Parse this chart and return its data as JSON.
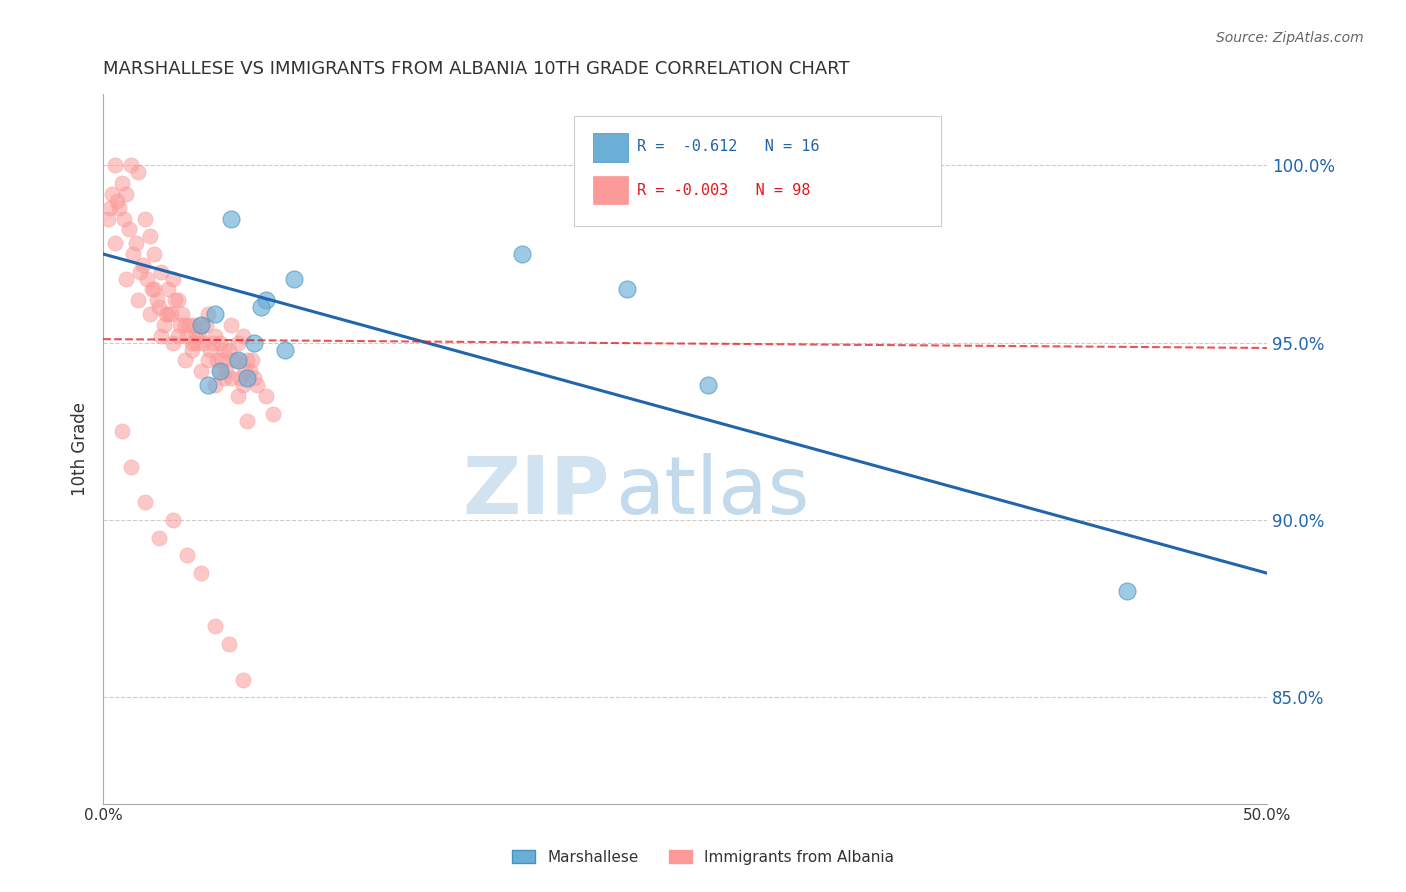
{
  "title": "MARSHALLESE VS IMMIGRANTS FROM ALBANIA 10TH GRADE CORRELATION CHART",
  "source": "Source: ZipAtlas.com",
  "ylabel": "10th Grade",
  "xlim": [
    0.0,
    50.0
  ],
  "ylim": [
    82.0,
    102.0
  ],
  "yticks": [
    85.0,
    90.0,
    95.0,
    100.0
  ],
  "ytick_labels": [
    "85.0%",
    "90.0%",
    "95.0%",
    "100.0%"
  ],
  "xticks": [
    0.0,
    10.0,
    20.0,
    30.0,
    40.0,
    50.0
  ],
  "legend_blue_r": "R =  -0.612",
  "legend_blue_n": "N = 16",
  "legend_pink_r": "R = -0.003",
  "legend_pink_n": "N = 98",
  "blue_color": "#6baed6",
  "pink_color": "#fb9a99",
  "blue_line_color": "#2166ac",
  "pink_line_color": "#e31a1c",
  "watermark_zip": "ZIP",
  "watermark_atlas": "atlas",
  "blue_scatter_x": [
    5.5,
    8.2,
    4.8,
    7.0,
    6.5,
    5.8,
    6.2,
    7.8,
    4.2,
    5.0,
    4.5,
    6.8,
    18.0,
    22.5,
    26.0,
    44.0
  ],
  "blue_scatter_y": [
    98.5,
    96.8,
    95.8,
    96.2,
    95.0,
    94.5,
    94.0,
    94.8,
    95.5,
    94.2,
    93.8,
    96.0,
    97.5,
    96.5,
    93.8,
    88.0
  ],
  "pink_scatter_x": [
    0.5,
    0.8,
    1.0,
    1.2,
    1.5,
    1.8,
    2.0,
    2.2,
    2.5,
    2.8,
    3.0,
    3.2,
    3.5,
    3.8,
    4.0,
    4.2,
    4.5,
    4.8,
    5.0,
    5.2,
    5.5,
    5.8,
    6.0,
    6.2,
    6.5,
    0.3,
    0.6,
    0.9,
    1.1,
    1.4,
    1.7,
    1.9,
    2.1,
    2.4,
    2.7,
    3.1,
    3.4,
    3.7,
    4.1,
    4.4,
    4.7,
    5.1,
    5.4,
    5.7,
    6.1,
    6.4,
    0.4,
    0.7,
    1.3,
    1.6,
    2.3,
    2.6,
    2.9,
    3.3,
    3.6,
    3.9,
    4.3,
    4.6,
    4.9,
    5.3,
    5.6,
    5.9,
    6.3,
    6.6,
    7.0,
    7.3,
    0.2,
    0.5,
    1.0,
    1.5,
    2.0,
    2.5,
    3.0,
    3.5,
    4.0,
    4.5,
    5.0,
    5.5,
    6.0,
    2.2,
    2.8,
    3.2,
    3.8,
    4.2,
    4.8,
    5.2,
    5.8,
    6.2,
    0.8,
    1.2,
    1.8,
    2.4,
    3.0,
    3.6,
    4.2,
    4.8,
    5.4,
    6.0
  ],
  "pink_scatter_y": [
    100.0,
    99.5,
    99.2,
    100.0,
    99.8,
    98.5,
    98.0,
    97.5,
    97.0,
    96.5,
    96.8,
    96.2,
    95.5,
    95.0,
    95.2,
    95.5,
    95.8,
    95.2,
    95.0,
    94.8,
    95.5,
    95.0,
    95.2,
    94.5,
    94.0,
    98.8,
    99.0,
    98.5,
    98.2,
    97.8,
    97.2,
    96.8,
    96.5,
    96.0,
    95.8,
    96.2,
    95.8,
    95.5,
    95.2,
    95.5,
    95.0,
    94.5,
    94.8,
    94.5,
    94.2,
    94.5,
    99.2,
    98.8,
    97.5,
    97.0,
    96.2,
    95.5,
    95.8,
    95.5,
    95.2,
    95.5,
    95.0,
    94.8,
    94.5,
    94.2,
    94.5,
    94.0,
    94.2,
    93.8,
    93.5,
    93.0,
    98.5,
    97.8,
    96.8,
    96.2,
    95.8,
    95.2,
    95.0,
    94.5,
    95.0,
    94.5,
    94.2,
    94.0,
    93.8,
    96.5,
    95.8,
    95.2,
    94.8,
    94.2,
    93.8,
    94.0,
    93.5,
    92.8,
    92.5,
    91.5,
    90.5,
    89.5,
    90.0,
    89.0,
    88.5,
    87.0,
    86.5,
    85.5
  ]
}
